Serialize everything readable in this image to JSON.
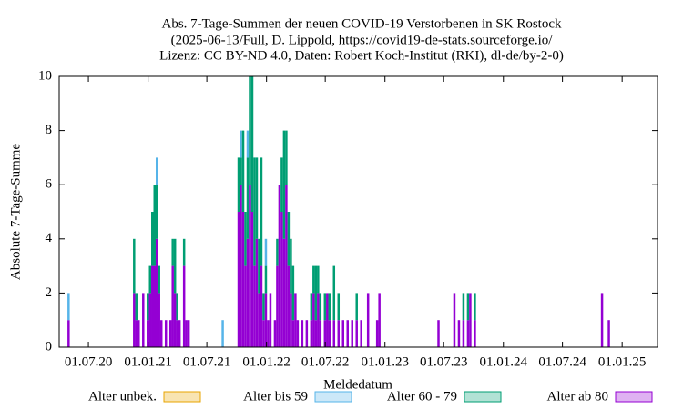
{
  "chart_data": {
    "type": "stacked_bar",
    "title": "Abs. 7-Tage-Summen der neuen COVID-19 Verstorbenen in SK Rostock",
    "subtitle": [
      "(2025-06-13/Full, D. Lippold, https://covid19-de-stats.sourceforge.io/",
      "Lizenz: CC BY-ND 4.0, Daten: Robert Koch-Institut (RKI), dl-de/by-2-0)"
    ],
    "x_label": "Meldedatum",
    "y_label": "Absolute 7-Tage-Summe",
    "xlim": [
      "2020-04-02",
      "2025-04-20"
    ],
    "xticks": [
      {
        "value": "2020-07-01",
        "label": "01.07.20"
      },
      {
        "value": "2021-01-01",
        "label": "01.01.21"
      },
      {
        "value": "2021-07-01",
        "label": "01.07.21"
      },
      {
        "value": "2022-01-01",
        "label": "01.01.22"
      },
      {
        "value": "2022-07-01",
        "label": "01.07.22"
      },
      {
        "value": "2023-01-01",
        "label": "01.01.23"
      },
      {
        "value": "2023-07-01",
        "label": "01.07.23"
      },
      {
        "value": "2024-01-01",
        "label": "01.01.24"
      },
      {
        "value": "2024-07-01",
        "label": "01.07.24"
      },
      {
        "value": "2025-01-01",
        "label": "01.01.25"
      }
    ],
    "ylim": [
      0,
      10
    ],
    "yticks": [
      0,
      2,
      4,
      6,
      8,
      10
    ],
    "x": [
      "2020-05-01",
      "2020-11-19",
      "2020-11-26",
      "2020-12-03",
      "2020-12-17",
      "2020-12-31",
      "2021-01-07",
      "2021-01-14",
      "2021-01-21",
      "2021-01-28",
      "2021-02-04",
      "2021-02-11",
      "2021-02-25",
      "2021-03-11",
      "2021-03-18",
      "2021-03-25",
      "2021-04-01",
      "2021-04-08",
      "2021-04-22",
      "2021-04-29",
      "2021-05-06",
      "2021-08-19",
      "2021-10-07",
      "2021-10-14",
      "2021-10-21",
      "2021-10-28",
      "2021-11-04",
      "2021-11-11",
      "2021-11-18",
      "2021-11-25",
      "2021-12-02",
      "2021-12-09",
      "2021-12-16",
      "2021-12-23",
      "2021-12-30",
      "2022-01-06",
      "2022-01-13",
      "2022-01-27",
      "2022-02-03",
      "2022-02-10",
      "2022-02-17",
      "2022-02-24",
      "2022-03-03",
      "2022-03-10",
      "2022-03-17",
      "2022-03-24",
      "2022-03-31",
      "2022-04-07",
      "2022-04-21",
      "2022-05-05",
      "2022-05-19",
      "2022-05-26",
      "2022-06-02",
      "2022-06-09",
      "2022-06-16",
      "2022-06-30",
      "2022-07-07",
      "2022-07-14",
      "2022-07-28",
      "2022-08-11",
      "2022-08-25",
      "2022-09-08",
      "2022-09-22",
      "2022-10-06",
      "2022-10-20",
      "2022-11-10",
      "2022-12-08",
      "2022-12-15",
      "2023-06-15",
      "2023-08-03",
      "2023-08-17",
      "2023-08-31",
      "2023-09-14",
      "2023-09-21",
      "2023-10-05",
      "2024-10-31",
      "2024-11-21"
    ],
    "series": [
      {
        "name": "Alter unbek.",
        "color": "#e8a400",
        "values": [
          0,
          0,
          0,
          0,
          0,
          0,
          0,
          0,
          0,
          0,
          0,
          0,
          0,
          0,
          0,
          0,
          0,
          0,
          0,
          0,
          0,
          0,
          0,
          0,
          0,
          0,
          0,
          0,
          0,
          0,
          0,
          0,
          0,
          0,
          0,
          0,
          0,
          0,
          0,
          0,
          0,
          0,
          0,
          0,
          0,
          0,
          0,
          0,
          0,
          0,
          0,
          0,
          0,
          0,
          0,
          0,
          0,
          0,
          0,
          0,
          0,
          0,
          0,
          0,
          0,
          0,
          0,
          0,
          0,
          0,
          0,
          0,
          0,
          0,
          0,
          0,
          0
        ]
      },
      {
        "name": "Alter bis 59",
        "color": "#56b4e9",
        "values": [
          1,
          0,
          0,
          0,
          0,
          0,
          0,
          0,
          0,
          1,
          0,
          0,
          0,
          0,
          0,
          0,
          0,
          0,
          0,
          0,
          0,
          1,
          0,
          1,
          0,
          0,
          1,
          0,
          0,
          0,
          0,
          0,
          0,
          0,
          1,
          0,
          0,
          0,
          0,
          0,
          0,
          0,
          0,
          0,
          0,
          0,
          0,
          0,
          0,
          0,
          0,
          0,
          0,
          0,
          0,
          0,
          0,
          0,
          0,
          0,
          0,
          0,
          0,
          0,
          0,
          0,
          0,
          0,
          0,
          0,
          0,
          0,
          0,
          0,
          0,
          0,
          0
        ]
      },
      {
        "name": "Alter 60 - 79",
        "color": "#009e73",
        "values": [
          0,
          2,
          1,
          0,
          0,
          1,
          1,
          2,
          3,
          2,
          1,
          0,
          0,
          0,
          1,
          2,
          1,
          0,
          1,
          0,
          0,
          0,
          2,
          1,
          3,
          2,
          3,
          4,
          5,
          4,
          3,
          2,
          4,
          1,
          1,
          0,
          0,
          0,
          1,
          0,
          2,
          4,
          2,
          2,
          2,
          2,
          0,
          0,
          0,
          0,
          1,
          1,
          2,
          1,
          1,
          1,
          0,
          1,
          2,
          1,
          0,
          0,
          0,
          1,
          0,
          0,
          0,
          0,
          0,
          0,
          0,
          1,
          1,
          0,
          1,
          0,
          0
        ]
      },
      {
        "name": "Alter ab 80",
        "color": "#9400d3",
        "values": [
          1,
          2,
          1,
          1,
          2,
          1,
          2,
          3,
          3,
          4,
          2,
          1,
          1,
          1,
          3,
          2,
          1,
          1,
          3,
          1,
          1,
          0,
          5,
          6,
          5,
          3,
          4,
          6,
          5,
          3,
          4,
          2,
          3,
          1,
          2,
          1,
          2,
          1,
          3,
          6,
          5,
          4,
          6,
          3,
          2,
          1,
          2,
          1,
          1,
          1,
          1,
          2,
          1,
          2,
          1,
          1,
          2,
          1,
          1,
          1,
          1,
          1,
          1,
          1,
          1,
          2,
          1,
          2,
          1,
          2,
          1,
          1,
          1,
          2,
          1,
          2,
          1
        ]
      }
    ]
  }
}
